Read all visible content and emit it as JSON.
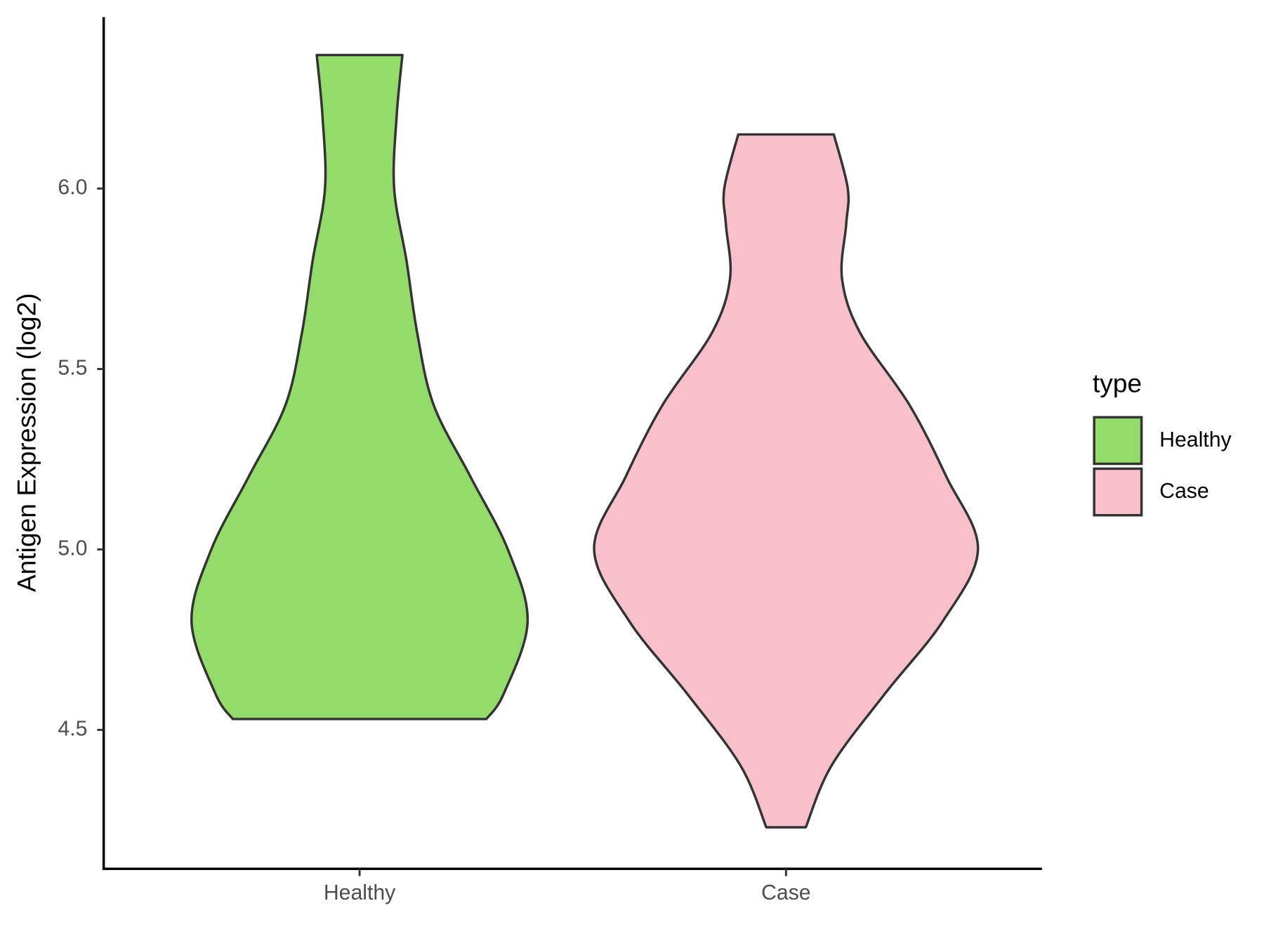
{
  "chart_data": {
    "type": "violin",
    "y_label": "Antigen Expression (log2)",
    "categories": [
      "Healthy",
      "Case"
    ],
    "series": [
      {
        "name": "Healthy",
        "color": "#93dc6a",
        "values": [
          6.37,
          6.2,
          6.0,
          5.8,
          5.6,
          5.4,
          5.2,
          5.0,
          4.8,
          4.6,
          4.53
        ],
        "density": [
          52,
          45,
          42,
          57,
          70,
          90,
          135,
          180,
          204,
          175,
          154
        ]
      },
      {
        "name": "Case",
        "color": "#f8c0cb",
        "values": [
          6.15,
          6.0,
          5.9,
          5.75,
          5.6,
          5.4,
          5.2,
          5.0,
          4.8,
          4.6,
          4.4,
          4.23
        ],
        "density": [
          58,
          75,
          73,
          68,
          90,
          150,
          195,
          233,
          190,
          120,
          55,
          24
        ]
      }
    ],
    "ylim": [
      4.115,
      6.475
    ],
    "yticks": [
      4.5,
      {
        "value": 5,
        "label": "5.0"
      },
      5.5,
      {
        "value": 6,
        "label": "6.0"
      }
    ],
    "legend_title": "type",
    "legend_position": "right",
    "outline_color": "#333333"
  }
}
